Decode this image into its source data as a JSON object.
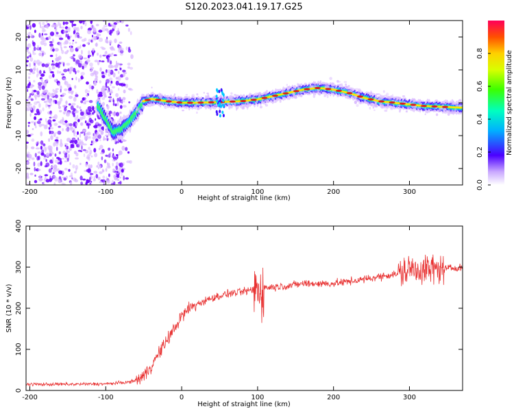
{
  "title": "S120.2023.041.19.17.G25",
  "colors": {
    "spectrum_ridge": "#d81e1e",
    "snr_line": "#e83232",
    "scatter_dark": "#6a00ff",
    "scatter_light": "#d9b8ff"
  },
  "chart_data": [
    {
      "type": "heatmap",
      "xlabel": "Height of straight line (km)",
      "ylabel": "Frequency (Hz)",
      "xlim": [
        -205,
        370
      ],
      "ylim": [
        -25,
        25
      ],
      "xticks": [
        -200,
        -100,
        0,
        100,
        200,
        300
      ],
      "yticks": [
        -20,
        -10,
        0,
        10,
        20
      ],
      "colorbar": {
        "label": "Normalized spectral amplitude",
        "range": [
          0,
          1
        ],
        "ticks": [
          "0.0",
          "0.2",
          "0.4",
          "0.6",
          "0.8"
        ]
      },
      "ridge": {
        "x": [
          -110,
          -100,
          -90,
          -80,
          -70,
          -60,
          -50,
          -40,
          -20,
          0,
          20,
          50,
          80,
          100,
          120,
          140,
          160,
          180,
          200,
          220,
          240,
          260,
          280,
          300,
          320,
          340,
          370
        ],
        "y": [
          -1,
          -5,
          -9,
          -8,
          -6,
          -3,
          0.5,
          1.2,
          0.5,
          0,
          0,
          0.2,
          0.5,
          1,
          2,
          3,
          4,
          4.5,
          4,
          3,
          1.5,
          0.5,
          0,
          -0.5,
          -1,
          -1.2,
          -1.5
        ]
      },
      "grid": false
    },
    {
      "type": "line",
      "xlabel": "Height of straight line (km)",
      "ylabel": "SNR (10 * v/v)",
      "xlim": [
        -205,
        370
      ],
      "ylim": [
        0,
        400
      ],
      "xticks": [
        -200,
        -100,
        0,
        100,
        200,
        300
      ],
      "yticks": [
        0,
        100,
        200,
        300,
        400
      ],
      "series": [
        {
          "x": [
            -205,
            -150,
            -100,
            -70,
            -60,
            -50,
            -40,
            -30,
            -20,
            -10,
            0,
            10,
            20,
            40,
            60,
            80,
            95,
            100,
            105,
            110,
            140,
            160,
            200,
            240,
            270,
            290,
            300,
            320,
            340,
            370
          ],
          "values": [
            15,
            15,
            16,
            20,
            25,
            35,
            60,
            90,
            120,
            150,
            180,
            200,
            210,
            225,
            235,
            240,
            245,
            250,
            250,
            250,
            255,
            260,
            260,
            270,
            280,
            285,
            295,
            295,
            295,
            300
          ]
        }
      ],
      "grid": false
    }
  ]
}
